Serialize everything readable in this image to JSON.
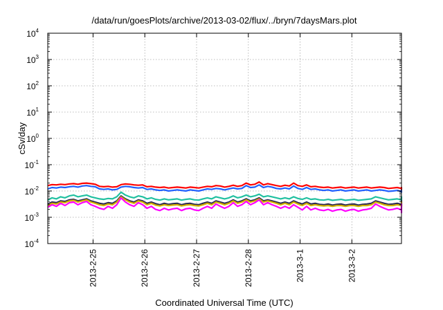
{
  "chart_data": {
    "type": "line",
    "title": "/data/run/goesPlots/archive/2013-03-02/flux/../bryn/7daysMars.plot",
    "xlabel": "Coordinated Universal Time (UTC)",
    "ylabel": "cSv/day",
    "y_scale": "log",
    "ylim": [
      0.0001,
      10000
    ],
    "y_ticks": [
      {
        "base": "10",
        "exp": "4"
      },
      {
        "base": "10",
        "exp": "3"
      },
      {
        "base": "10",
        "exp": "2"
      },
      {
        "base": "10",
        "exp": "1"
      },
      {
        "base": "10",
        "exp": "0"
      },
      {
        "base": "10",
        "exp": "-1"
      },
      {
        "base": "10",
        "exp": "-2"
      },
      {
        "base": "10",
        "exp": "-3"
      },
      {
        "base": "10",
        "exp": "-4"
      }
    ],
    "xlim": [
      "2013-02-24 03:00",
      "2013-03-02 23:00"
    ],
    "x_ticks": [
      {
        "label": "2013-2-25",
        "at": "2013-02-25 00:00"
      },
      {
        "label": "2013-2-26",
        "at": "2013-02-26 00:00"
      },
      {
        "label": "2013-2-27",
        "at": "2013-02-27 00:00"
      },
      {
        "label": "2013-2-28",
        "at": "2013-02-28 00:00"
      },
      {
        "label": "2013-3-1",
        "at": "2013-03-01 00:00"
      },
      {
        "label": "2013-3-2",
        "at": "2013-03-02 00:00"
      }
    ],
    "grid": true,
    "series": [
      {
        "color": "#ff0000",
        "x_start": "2013-02-24 03:00",
        "x_step_hours": 2,
        "values": [
          0.016,
          0.0175,
          0.017,
          0.018,
          0.0175,
          0.0185,
          0.019,
          0.018,
          0.0195,
          0.02,
          0.019,
          0.018,
          0.015,
          0.0145,
          0.015,
          0.014,
          0.0145,
          0.0175,
          0.0185,
          0.018,
          0.017,
          0.0165,
          0.017,
          0.0145,
          0.015,
          0.014,
          0.0135,
          0.014,
          0.013,
          0.0135,
          0.014,
          0.0135,
          0.013,
          0.014,
          0.0135,
          0.013,
          0.014,
          0.015,
          0.0145,
          0.016,
          0.0155,
          0.014,
          0.015,
          0.0165,
          0.015,
          0.016,
          0.02,
          0.017,
          0.018,
          0.022,
          0.017,
          0.019,
          0.0175,
          0.016,
          0.015,
          0.0165,
          0.0155,
          0.02,
          0.016,
          0.015,
          0.017,
          0.0145,
          0.015,
          0.014,
          0.0135,
          0.014,
          0.013,
          0.0135,
          0.014,
          0.013,
          0.0135,
          0.014,
          0.013,
          0.0135,
          0.014,
          0.013,
          0.0135,
          0.014,
          0.0135,
          0.0125,
          0.013,
          0.0135,
          0.0125,
          0.013,
          0.0135,
          0.013,
          0.0135,
          0.0125,
          0.013,
          0.0135,
          0.013,
          0.0125,
          0.013,
          0.0135,
          0.0125,
          0.013,
          0.0135,
          0.0125,
          0.013,
          0.0135,
          0.0125,
          0.013,
          0.0135,
          0.0125,
          0.013,
          0.0125,
          0.013,
          0.012,
          0.013,
          0.0125,
          0.013,
          0.012,
          0.0125,
          0.013,
          0.012,
          0.0125,
          0.012,
          0.0125,
          0.013,
          0.012,
          0.0125,
          0.0115,
          0.012,
          0.0125,
          0.012
        ]
      },
      {
        "color": "#1f5fff",
        "x_start": "2013-02-24 03:00",
        "x_step_hours": 2,
        "values": [
          0.012,
          0.0135,
          0.013,
          0.014,
          0.0135,
          0.0145,
          0.015,
          0.014,
          0.0155,
          0.016,
          0.015,
          0.0145,
          0.012,
          0.0115,
          0.012,
          0.011,
          0.0115,
          0.014,
          0.015,
          0.0145,
          0.0135,
          0.013,
          0.0135,
          0.0115,
          0.012,
          0.011,
          0.0105,
          0.011,
          0.01,
          0.0105,
          0.011,
          0.0105,
          0.01,
          0.011,
          0.0105,
          0.01,
          0.011,
          0.012,
          0.0115,
          0.0125,
          0.012,
          0.011,
          0.012,
          0.013,
          0.012,
          0.0125,
          0.016,
          0.0135,
          0.014,
          0.017,
          0.0135,
          0.015,
          0.014,
          0.0125,
          0.012,
          0.013,
          0.012,
          0.0155,
          0.0125,
          0.0115,
          0.0135,
          0.0115,
          0.012,
          0.011,
          0.0105,
          0.011,
          0.01,
          0.0105,
          0.011,
          0.01,
          0.0105,
          0.011,
          0.01,
          0.0105,
          0.011,
          0.01,
          0.0105,
          0.011,
          0.0105,
          0.0097,
          0.01,
          0.0105,
          0.0097,
          0.01,
          0.0105,
          0.01,
          0.0105,
          0.0097,
          0.01,
          0.0105,
          0.01,
          0.0097,
          0.01,
          0.0105,
          0.0097,
          0.01,
          0.0105,
          0.0097,
          0.01,
          0.0105,
          0.0097,
          0.01,
          0.0105,
          0.0097,
          0.01,
          0.0097,
          0.01,
          0.0093,
          0.01,
          0.0097,
          0.01,
          0.0093,
          0.0097,
          0.01,
          0.0093,
          0.0097,
          0.0093,
          0.0097,
          0.01,
          0.0093,
          0.0097,
          0.009,
          0.0093,
          0.0097,
          0.0093
        ]
      },
      {
        "color": "#20c0a0",
        "x_start": "2013-02-24 03:00",
        "x_step_hours": 2,
        "values": [
          0.0045,
          0.0055,
          0.005,
          0.006,
          0.0055,
          0.0065,
          0.007,
          0.006,
          0.0065,
          0.007,
          0.006,
          0.0055,
          0.005,
          0.0048,
          0.0052,
          0.005,
          0.006,
          0.009,
          0.007,
          0.006,
          0.0055,
          0.0065,
          0.006,
          0.005,
          0.0055,
          0.0048,
          0.0045,
          0.005,
          0.0046,
          0.0048,
          0.005,
          0.0045,
          0.0048,
          0.005,
          0.0046,
          0.0045,
          0.005,
          0.0055,
          0.005,
          0.006,
          0.0055,
          0.005,
          0.0055,
          0.0065,
          0.0055,
          0.006,
          0.007,
          0.006,
          0.0065,
          0.0075,
          0.006,
          0.0065,
          0.006,
          0.0055,
          0.005,
          0.0055,
          0.005,
          0.006,
          0.0052,
          0.0048,
          0.0055,
          0.0048,
          0.005,
          0.0046,
          0.0045,
          0.0048,
          0.0044,
          0.0046,
          0.0048,
          0.0044,
          0.0046,
          0.0048,
          0.0044,
          0.0046,
          0.0048,
          0.005,
          0.006,
          0.0055,
          0.005,
          0.0046,
          0.0048,
          0.005,
          0.0046,
          0.0048,
          0.006,
          0.005,
          0.0055,
          0.0046,
          0.0048,
          0.005,
          0.0046,
          0.0044,
          0.0046,
          0.006,
          0.005,
          0.0048,
          0.005,
          0.0046,
          0.0048,
          0.005,
          0.0046,
          0.0048,
          0.005,
          0.0046,
          0.0048,
          0.0044,
          0.0046,
          0.0043,
          0.0046,
          0.0044,
          0.0046,
          0.0043,
          0.0044,
          0.0046,
          0.0043,
          0.0044,
          0.0043,
          0.0044,
          0.0046,
          0.0043,
          0.0044,
          0.0042,
          0.0043,
          0.0044,
          0.0043
        ]
      },
      {
        "color": "#2a2a55",
        "x_start": "2013-02-24 03:00",
        "x_step_hours": 2,
        "values": [
          0.0032,
          0.0038,
          0.0036,
          0.0042,
          0.004,
          0.0046,
          0.0048,
          0.0042,
          0.0046,
          0.005,
          0.0042,
          0.0038,
          0.0034,
          0.0032,
          0.0036,
          0.0034,
          0.0042,
          0.0065,
          0.005,
          0.0042,
          0.0038,
          0.0046,
          0.0042,
          0.0034,
          0.0038,
          0.0033,
          0.003,
          0.0034,
          0.0031,
          0.0033,
          0.0034,
          0.003,
          0.0033,
          0.0034,
          0.0031,
          0.003,
          0.0034,
          0.0038,
          0.0034,
          0.0042,
          0.0038,
          0.0034,
          0.0038,
          0.0046,
          0.0038,
          0.0042,
          0.005,
          0.0042,
          0.0046,
          0.0055,
          0.0042,
          0.0046,
          0.0042,
          0.0038,
          0.0034,
          0.0038,
          0.0034,
          0.0042,
          0.0036,
          0.0032,
          0.0038,
          0.0032,
          0.0034,
          0.0031,
          0.003,
          0.0032,
          0.0029,
          0.0031,
          0.0032,
          0.0029,
          0.0031,
          0.0032,
          0.0029,
          0.0031,
          0.0032,
          0.0034,
          0.0042,
          0.0038,
          0.0034,
          0.0031,
          0.0032,
          0.0034,
          0.0031,
          0.0032,
          0.0042,
          0.0034,
          0.0038,
          0.0031,
          0.0032,
          0.0034,
          0.0031,
          0.0029,
          0.0031,
          0.0042,
          0.0034,
          0.0032,
          0.0034,
          0.0031,
          0.0032,
          0.0034,
          0.0031,
          0.0032,
          0.0034,
          0.0031,
          0.0032,
          0.0029,
          0.0031,
          0.0028,
          0.0031,
          0.0029,
          0.0031,
          0.0028,
          0.0029,
          0.0031,
          0.0028,
          0.0029,
          0.0028,
          0.0029,
          0.0031,
          0.0028,
          0.0029,
          0.0027,
          0.0028,
          0.0029,
          0.0028
        ]
      },
      {
        "color": "#d4b000",
        "x_start": "2013-02-24 03:00",
        "x_step_hours": 2,
        "values": [
          0.0028,
          0.0034,
          0.0032,
          0.0038,
          0.0036,
          0.0042,
          0.0044,
          0.0038,
          0.0042,
          0.0046,
          0.0038,
          0.0034,
          0.003,
          0.0028,
          0.0032,
          0.003,
          0.0038,
          0.006,
          0.0046,
          0.0038,
          0.0034,
          0.0042,
          0.0038,
          0.003,
          0.0034,
          0.0029,
          0.0027,
          0.003,
          0.0028,
          0.0029,
          0.003,
          0.0027,
          0.0029,
          0.003,
          0.0028,
          0.0027,
          0.003,
          0.0034,
          0.003,
          0.0038,
          0.0034,
          0.003,
          0.0034,
          0.0042,
          0.0034,
          0.0038,
          0.0046,
          0.0038,
          0.0042,
          0.005,
          0.0038,
          0.0042,
          0.0038,
          0.0034,
          0.003,
          0.0034,
          0.003,
          0.0038,
          0.0032,
          0.0028,
          0.0034,
          0.0028,
          0.003,
          0.0028,
          0.0027,
          0.0028,
          0.0026,
          0.0028,
          0.0028,
          0.0026,
          0.0028,
          0.0028,
          0.0026,
          0.0028,
          0.0028,
          0.003,
          0.0038,
          0.0034,
          0.003,
          0.0028,
          0.0028,
          0.003,
          0.0028,
          0.0028,
          0.0038,
          0.003,
          0.0034,
          0.0028,
          0.0028,
          0.003,
          0.0028,
          0.0026,
          0.0028,
          0.0038,
          0.003,
          0.0028,
          0.003,
          0.0028,
          0.0028,
          0.003,
          0.0028,
          0.0028,
          0.003,
          0.0028,
          0.0028,
          0.0026,
          0.0028,
          0.0025,
          0.0028,
          0.0026,
          0.0028,
          0.0025,
          0.0026,
          0.0028,
          0.0025,
          0.0026,
          0.0025,
          0.0026,
          0.0028,
          0.0025,
          0.0026,
          0.0024,
          0.0025,
          0.0026,
          0.0025
        ]
      },
      {
        "color": "#ff00ff",
        "x_start": "2013-02-24 03:00",
        "x_step_hours": 2,
        "values": [
          0.0024,
          0.003,
          0.0026,
          0.0034,
          0.0028,
          0.0036,
          0.0038,
          0.003,
          0.0036,
          0.004,
          0.003,
          0.0026,
          0.0022,
          0.002,
          0.0026,
          0.0022,
          0.003,
          0.0055,
          0.0038,
          0.003,
          0.0026,
          0.0036,
          0.003,
          0.0022,
          0.0026,
          0.002,
          0.0018,
          0.0022,
          0.0019,
          0.0021,
          0.0022,
          0.0018,
          0.0021,
          0.0022,
          0.0019,
          0.0018,
          0.0022,
          0.0026,
          0.0022,
          0.0032,
          0.0026,
          0.0022,
          0.0026,
          0.0036,
          0.0026,
          0.003,
          0.004,
          0.003,
          0.0036,
          0.0046,
          0.003,
          0.0036,
          0.003,
          0.0026,
          0.0022,
          0.0026,
          0.0022,
          0.003,
          0.0024,
          0.0019,
          0.0026,
          0.0019,
          0.0022,
          0.0019,
          0.0018,
          0.002,
          0.0017,
          0.0019,
          0.002,
          0.0017,
          0.0019,
          0.002,
          0.0017,
          0.0019,
          0.002,
          0.0022,
          0.0032,
          0.0026,
          0.0022,
          0.0019,
          0.002,
          0.0022,
          0.0019,
          0.002,
          0.0032,
          0.0022,
          0.0026,
          0.0019,
          0.002,
          0.0022,
          0.0019,
          0.0017,
          0.0019,
          0.0032,
          0.0022,
          0.002,
          0.0022,
          0.0019,
          0.002,
          0.0022,
          0.0019,
          0.002,
          0.0022,
          0.0019,
          0.002,
          0.0017,
          0.0019,
          0.0016,
          0.0019,
          0.0017,
          0.0019,
          0.0016,
          0.0017,
          0.0019,
          0.0016,
          0.0017,
          0.0016,
          0.0017,
          0.0019,
          0.0016,
          0.0017,
          0.0015,
          0.0016,
          0.0017,
          0.0016
        ]
      }
    ]
  }
}
